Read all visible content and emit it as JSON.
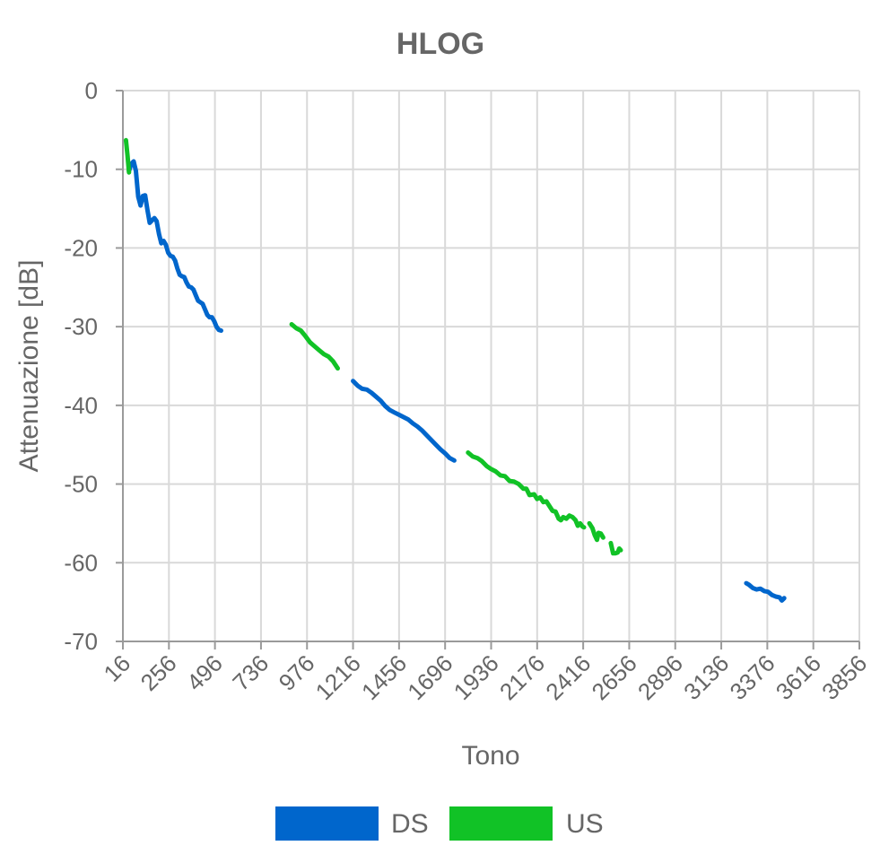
{
  "chart_data": {
    "type": "line",
    "title": "HLOG",
    "xlabel": "Tono",
    "ylabel": "Attenuazione [dB]",
    "xlim": [
      16,
      3856
    ],
    "ylim": [
      -70,
      0
    ],
    "x_ticks": [
      "16",
      "256",
      "496",
      "736",
      "976",
      "1216",
      "1456",
      "1696",
      "1936",
      "2176",
      "2416",
      "2656",
      "2896",
      "3136",
      "3376",
      "3616",
      "3856"
    ],
    "y_ticks": [
      "0",
      "-10",
      "-20",
      "-30",
      "-40",
      "-50",
      "-60",
      "-70"
    ],
    "grid": true,
    "legend_position": "bottom",
    "series": [
      {
        "name": "DS",
        "color": "#0066cc",
        "segments": [
          [
            [
              48,
              -10.2
            ],
            [
              60,
              -9.3
            ],
            [
              72,
              -9.0
            ],
            [
              84,
              -10.2
            ],
            [
              96,
              -13.5
            ],
            [
              108,
              -14.6
            ],
            [
              120,
              -13.4
            ],
            [
              132,
              -13.3
            ],
            [
              144,
              -15.2
            ],
            [
              156,
              -16.8
            ],
            [
              168,
              -16.5
            ],
            [
              180,
              -16.2
            ],
            [
              192,
              -16.6
            ],
            [
              204,
              -18.2
            ],
            [
              216,
              -19.4
            ],
            [
              228,
              -19.1
            ],
            [
              240,
              -19.6
            ],
            [
              252,
              -20.6
            ],
            [
              264,
              -21.0
            ],
            [
              276,
              -21.1
            ],
            [
              288,
              -21.6
            ],
            [
              300,
              -22.6
            ],
            [
              312,
              -23.4
            ],
            [
              324,
              -23.6
            ],
            [
              336,
              -23.7
            ],
            [
              348,
              -24.4
            ],
            [
              360,
              -24.9
            ],
            [
              372,
              -25.0
            ],
            [
              384,
              -25.3
            ],
            [
              396,
              -26.0
            ],
            [
              408,
              -26.7
            ],
            [
              420,
              -26.9
            ],
            [
              432,
              -27.1
            ],
            [
              444,
              -27.8
            ],
            [
              456,
              -28.5
            ],
            [
              468,
              -28.8
            ],
            [
              480,
              -28.8
            ],
            [
              492,
              -29.3
            ],
            [
              504,
              -30.0
            ],
            [
              516,
              -30.4
            ],
            [
              528,
              -30.5
            ]
          ],
          [
            [
              1216,
              -36.9
            ],
            [
              1240,
              -37.5
            ],
            [
              1264,
              -37.9
            ],
            [
              1288,
              -38.0
            ],
            [
              1312,
              -38.4
            ],
            [
              1336,
              -38.9
            ],
            [
              1360,
              -39.4
            ],
            [
              1384,
              -40.1
            ],
            [
              1408,
              -40.6
            ],
            [
              1432,
              -40.9
            ],
            [
              1456,
              -41.2
            ],
            [
              1480,
              -41.5
            ],
            [
              1504,
              -41.8
            ],
            [
              1528,
              -42.3
            ],
            [
              1552,
              -42.7
            ],
            [
              1576,
              -43.2
            ],
            [
              1600,
              -43.8
            ],
            [
              1624,
              -44.4
            ],
            [
              1648,
              -45.0
            ],
            [
              1672,
              -45.6
            ],
            [
              1696,
              -46.1
            ],
            [
              1720,
              -46.7
            ],
            [
              1744,
              -47.0
            ]
          ],
          [
            [
              3266,
              -62.6
            ],
            [
              3280,
              -62.8
            ],
            [
              3300,
              -63.2
            ],
            [
              3320,
              -63.4
            ],
            [
              3340,
              -63.3
            ],
            [
              3360,
              -63.6
            ],
            [
              3380,
              -63.7
            ],
            [
              3400,
              -64.1
            ],
            [
              3420,
              -64.3
            ],
            [
              3440,
              -64.4
            ],
            [
              3452,
              -64.8
            ],
            [
              3464,
              -64.5
            ]
          ]
        ]
      },
      {
        "name": "US",
        "color": "#11c226",
        "segments": [
          [
            [
              32,
              -6.3
            ],
            [
              40,
              -8.2
            ],
            [
              48,
              -10.4
            ]
          ],
          [
            [
              896,
              -29.7
            ],
            [
              920,
              -30.2
            ],
            [
              944,
              -30.5
            ],
            [
              968,
              -31.2
            ],
            [
              992,
              -32.0
            ],
            [
              1016,
              -32.5
            ],
            [
              1040,
              -33.0
            ],
            [
              1064,
              -33.5
            ],
            [
              1088,
              -33.8
            ],
            [
              1112,
              -34.4
            ],
            [
              1136,
              -35.3
            ]
          ],
          [
            [
              1816,
              -46.0
            ],
            [
              1840,
              -46.5
            ],
            [
              1864,
              -46.7
            ],
            [
              1888,
              -47.1
            ],
            [
              1912,
              -47.7
            ],
            [
              1936,
              -48.1
            ],
            [
              1960,
              -48.4
            ],
            [
              1984,
              -48.9
            ],
            [
              2008,
              -49.0
            ],
            [
              2032,
              -49.6
            ],
            [
              2056,
              -49.7
            ],
            [
              2080,
              -50.0
            ],
            [
              2104,
              -50.6
            ],
            [
              2120,
              -50.6
            ],
            [
              2136,
              -51.4
            ],
            [
              2160,
              -51.3
            ],
            [
              2176,
              -51.9
            ],
            [
              2192,
              -51.7
            ],
            [
              2208,
              -52.3
            ],
            [
              2224,
              -52.2
            ],
            [
              2240,
              -52.8
            ],
            [
              2256,
              -53.4
            ],
            [
              2272,
              -53.5
            ],
            [
              2288,
              -54.4
            ],
            [
              2300,
              -54.6
            ],
            [
              2312,
              -54.2
            ],
            [
              2328,
              -54.4
            ],
            [
              2344,
              -54.0
            ],
            [
              2360,
              -54.2
            ],
            [
              2376,
              -54.6
            ],
            [
              2388,
              -55.3
            ],
            [
              2400,
              -55.0
            ],
            [
              2412,
              -55.4
            ],
            [
              2420,
              -55.5
            ]
          ],
          [
            [
              2448,
              -55.0
            ],
            [
              2464,
              -55.6
            ],
            [
              2476,
              -56.5
            ],
            [
              2488,
              -57.1
            ],
            [
              2496,
              -56.2
            ],
            [
              2508,
              -56.3
            ],
            [
              2520,
              -56.8
            ]
          ],
          [
            [
              2560,
              -57.5
            ],
            [
              2572,
              -58.8
            ],
            [
              2584,
              -58.8
            ],
            [
              2596,
              -58.7
            ],
            [
              2604,
              -58.2
            ],
            [
              2612,
              -58.4
            ]
          ]
        ]
      }
    ]
  }
}
